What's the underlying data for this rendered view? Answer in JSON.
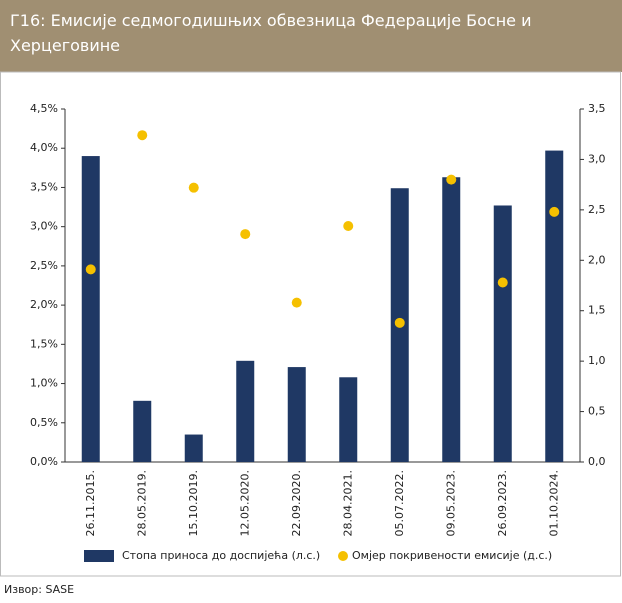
{
  "chart_data": {
    "type": "bar_dot",
    "title": "Г16: Емисије седмогодишњих обвезница  Федерације Босне и Херцеговине",
    "source": "Извор: SASE",
    "categories": [
      "26.11.2015.",
      "28.05.2019.",
      "15.10.2019.",
      "12.05.2020.",
      "22.09.2020.",
      "28.04.2021.",
      "05.07.2022.",
      "09.05.2023.",
      "26.09.2023.",
      "01.10.2024."
    ],
    "series": [
      {
        "name": "Стопа  приноса  до доспијећа (л.с.)",
        "color": "#1f3864",
        "values": [
          3.9,
          0.78,
          0.35,
          1.29,
          1.21,
          1.08,
          3.49,
          3.63,
          3.27,
          3.97
        ]
      },
      {
        "name": "Омјер покривености емисије (д.с.)",
        "color": "#f5c000",
        "axis": "y2",
        "values": [
          1.91,
          3.24,
          2.72,
          2.26,
          1.58,
          2.34,
          1.38,
          2.8,
          1.78,
          2.48
        ]
      }
    ],
    "ylim": [
      0,
      4.5
    ],
    "yticks": [
      {
        "value": 0,
        "label": "0,0%"
      },
      {
        "value": 0.5,
        "label": "0,5%"
      },
      {
        "value": 1,
        "label": "1,0%"
      },
      {
        "value": 1.5,
        "label": "1,5%"
      },
      {
        "value": 2,
        "label": "2,0%"
      },
      {
        "value": 2.5,
        "label": "2,5%"
      },
      {
        "value": 3,
        "label": "3,0%"
      },
      {
        "value": 3.5,
        "label": "3,5%"
      },
      {
        "value": 4,
        "label": "4,0%"
      },
      {
        "value": 4.5,
        "label": "4,5%"
      }
    ],
    "y2lim": [
      0,
      3.5
    ],
    "y2ticks": [
      {
        "value": 0,
        "label": "0,0"
      },
      {
        "value": 0.5,
        "label": "0,5"
      },
      {
        "value": 1,
        "label": "1,0"
      },
      {
        "value": 1.5,
        "label": "1,5"
      },
      {
        "value": 2,
        "label": "2,0"
      },
      {
        "value": 2.5,
        "label": "2,5"
      },
      {
        "value": 3,
        "label": "3,0"
      },
      {
        "value": 3.5,
        "label": "3,5"
      }
    ],
    "grid": false
  }
}
